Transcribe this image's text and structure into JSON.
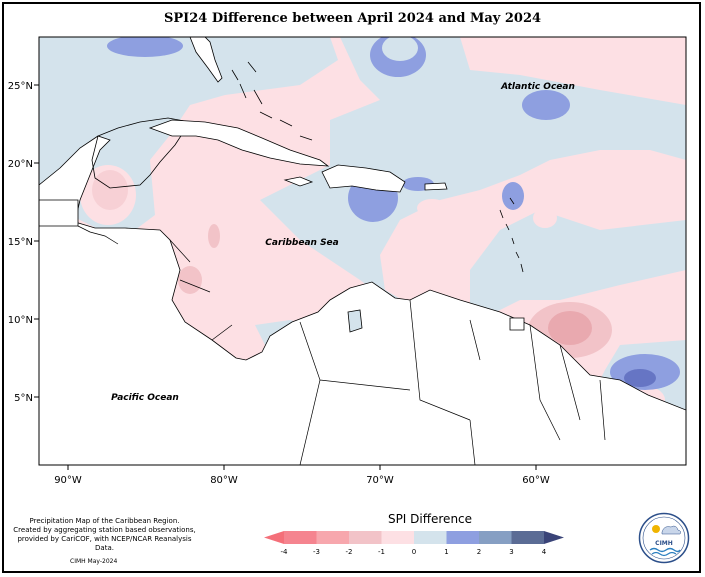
{
  "title": "SPI24 Difference between April 2024 and May 2024",
  "x_ticks": [
    {
      "label": "90°W",
      "lon": -90
    },
    {
      "label": "80°W",
      "lon": -80
    },
    {
      "label": "70°W",
      "lon": -70
    },
    {
      "label": "60°W",
      "lon": -60
    }
  ],
  "y_ticks": [
    {
      "label": "25°N",
      "lat": 25
    },
    {
      "label": "20°N",
      "lat": 20
    },
    {
      "label": "15°N",
      "lat": 15
    },
    {
      "label": "10°N",
      "lat": 10
    },
    {
      "label": "5°N",
      "lat": 5
    }
  ],
  "ocean_labels": {
    "atlantic": "Atlantic Ocean",
    "caribbean": "Caribbean Sea",
    "pacific": "Pacific Ocean"
  },
  "legend": {
    "title": "SPI Difference",
    "ticks": [
      "-4",
      "-3",
      "-2",
      "-1",
      "0",
      "1",
      "2",
      "3",
      "4"
    ],
    "colors": [
      "#f5848f",
      "#f7a7ad",
      "#f2c3c8",
      "#fde0e4",
      "#d4e3ec",
      "#8e9fe0",
      "#869fc3",
      "#5b6c95"
    ],
    "low_arrow_color": "#f46f79",
    "high_arrow_color": "#3a4478"
  },
  "caption": {
    "line1": "Precipitation Map of the Caribbean Region.",
    "line2": "Created by aggregating station based observations,",
    "line3": "provided by CariCOF, with NCEP/NCAR Reanalysis Data.",
    "stamp": "CIMH May-2024"
  },
  "logo": {
    "text": "CIMH"
  }
}
